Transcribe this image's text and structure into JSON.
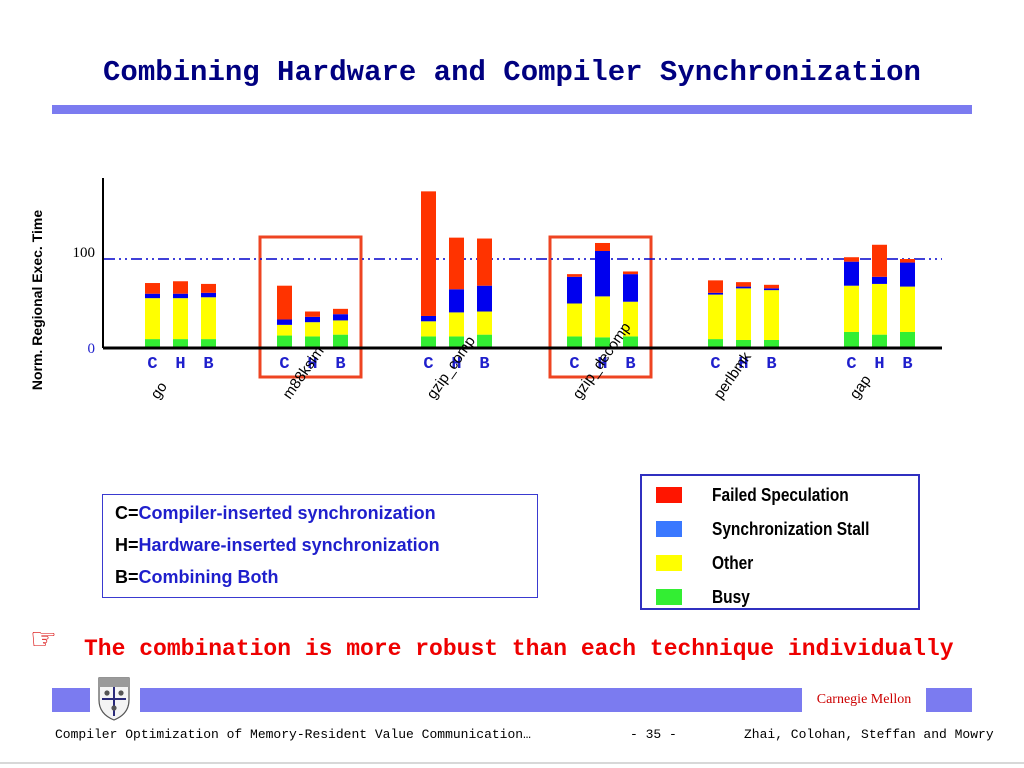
{
  "slide": {
    "title": "Combining Hardware and Compiler Synchronization",
    "conclusion": "The combination is more robust than each technique individually",
    "pointer_icon": "pointing-hand-icon"
  },
  "key": {
    "rows": [
      {
        "letter": "C=",
        "text": "Compiler-inserted synchronization"
      },
      {
        "letter": "H=",
        "text": "Hardware-inserted synchronization"
      },
      {
        "letter": "B=",
        "text": "Combining Both"
      }
    ]
  },
  "footer": {
    "left": "Compiler Optimization of Memory-Resident Value Communication…",
    "page": "- 35 -",
    "authors": "Zhai, Colohan, Steffan and Mowry",
    "org": "Carnegie Mellon"
  },
  "colors": {
    "failed": "#ff3300",
    "stall": "#0000ee",
    "other": "#ffff00",
    "busy": "#33ee33",
    "highlight": "#ee4422",
    "reference_line": "#0000cc"
  },
  "chart_data": {
    "type": "bar",
    "stacked": true,
    "ylabel": "Norm. Regional Exec. Time",
    "yticks": [
      0,
      100
    ],
    "ylim": [
      0,
      190
    ],
    "reference_line": 100,
    "benchmarks": [
      "go",
      "m88ksim",
      "gzip_comp",
      "gzip_decomp",
      "perlbmk",
      "gap"
    ],
    "highlighted": [
      "m88ksim",
      "gzip_decomp"
    ],
    "variants": [
      "C",
      "H",
      "B"
    ],
    "series": [
      {
        "name": "Busy",
        "values": [
          [
            10,
            10,
            10
          ],
          [
            14,
            13,
            15
          ],
          [
            13,
            13,
            15
          ],
          [
            13,
            12,
            13
          ],
          [
            10,
            9,
            9
          ],
          [
            18,
            15,
            18
          ]
        ]
      },
      {
        "name": "Other",
        "values": [
          [
            46,
            46,
            47
          ],
          [
            12,
            16,
            16
          ],
          [
            17,
            27,
            26
          ],
          [
            37,
            46,
            39
          ],
          [
            50,
            58,
            56
          ],
          [
            52,
            57,
            51
          ]
        ]
      },
      {
        "name": "Synchronization Stall",
        "values": [
          [
            5,
            5,
            5
          ],
          [
            6,
            6,
            7
          ],
          [
            6,
            26,
            29
          ],
          [
            30,
            51,
            31
          ],
          [
            2,
            2,
            2
          ],
          [
            27,
            8,
            27
          ]
        ]
      },
      {
        "name": "Failed Speculation",
        "values": [
          [
            12,
            14,
            10
          ],
          [
            38,
            6,
            6
          ],
          [
            140,
            58,
            53
          ],
          [
            3,
            9,
            3
          ],
          [
            14,
            5,
            4
          ],
          [
            5,
            36,
            4
          ]
        ]
      }
    ]
  }
}
